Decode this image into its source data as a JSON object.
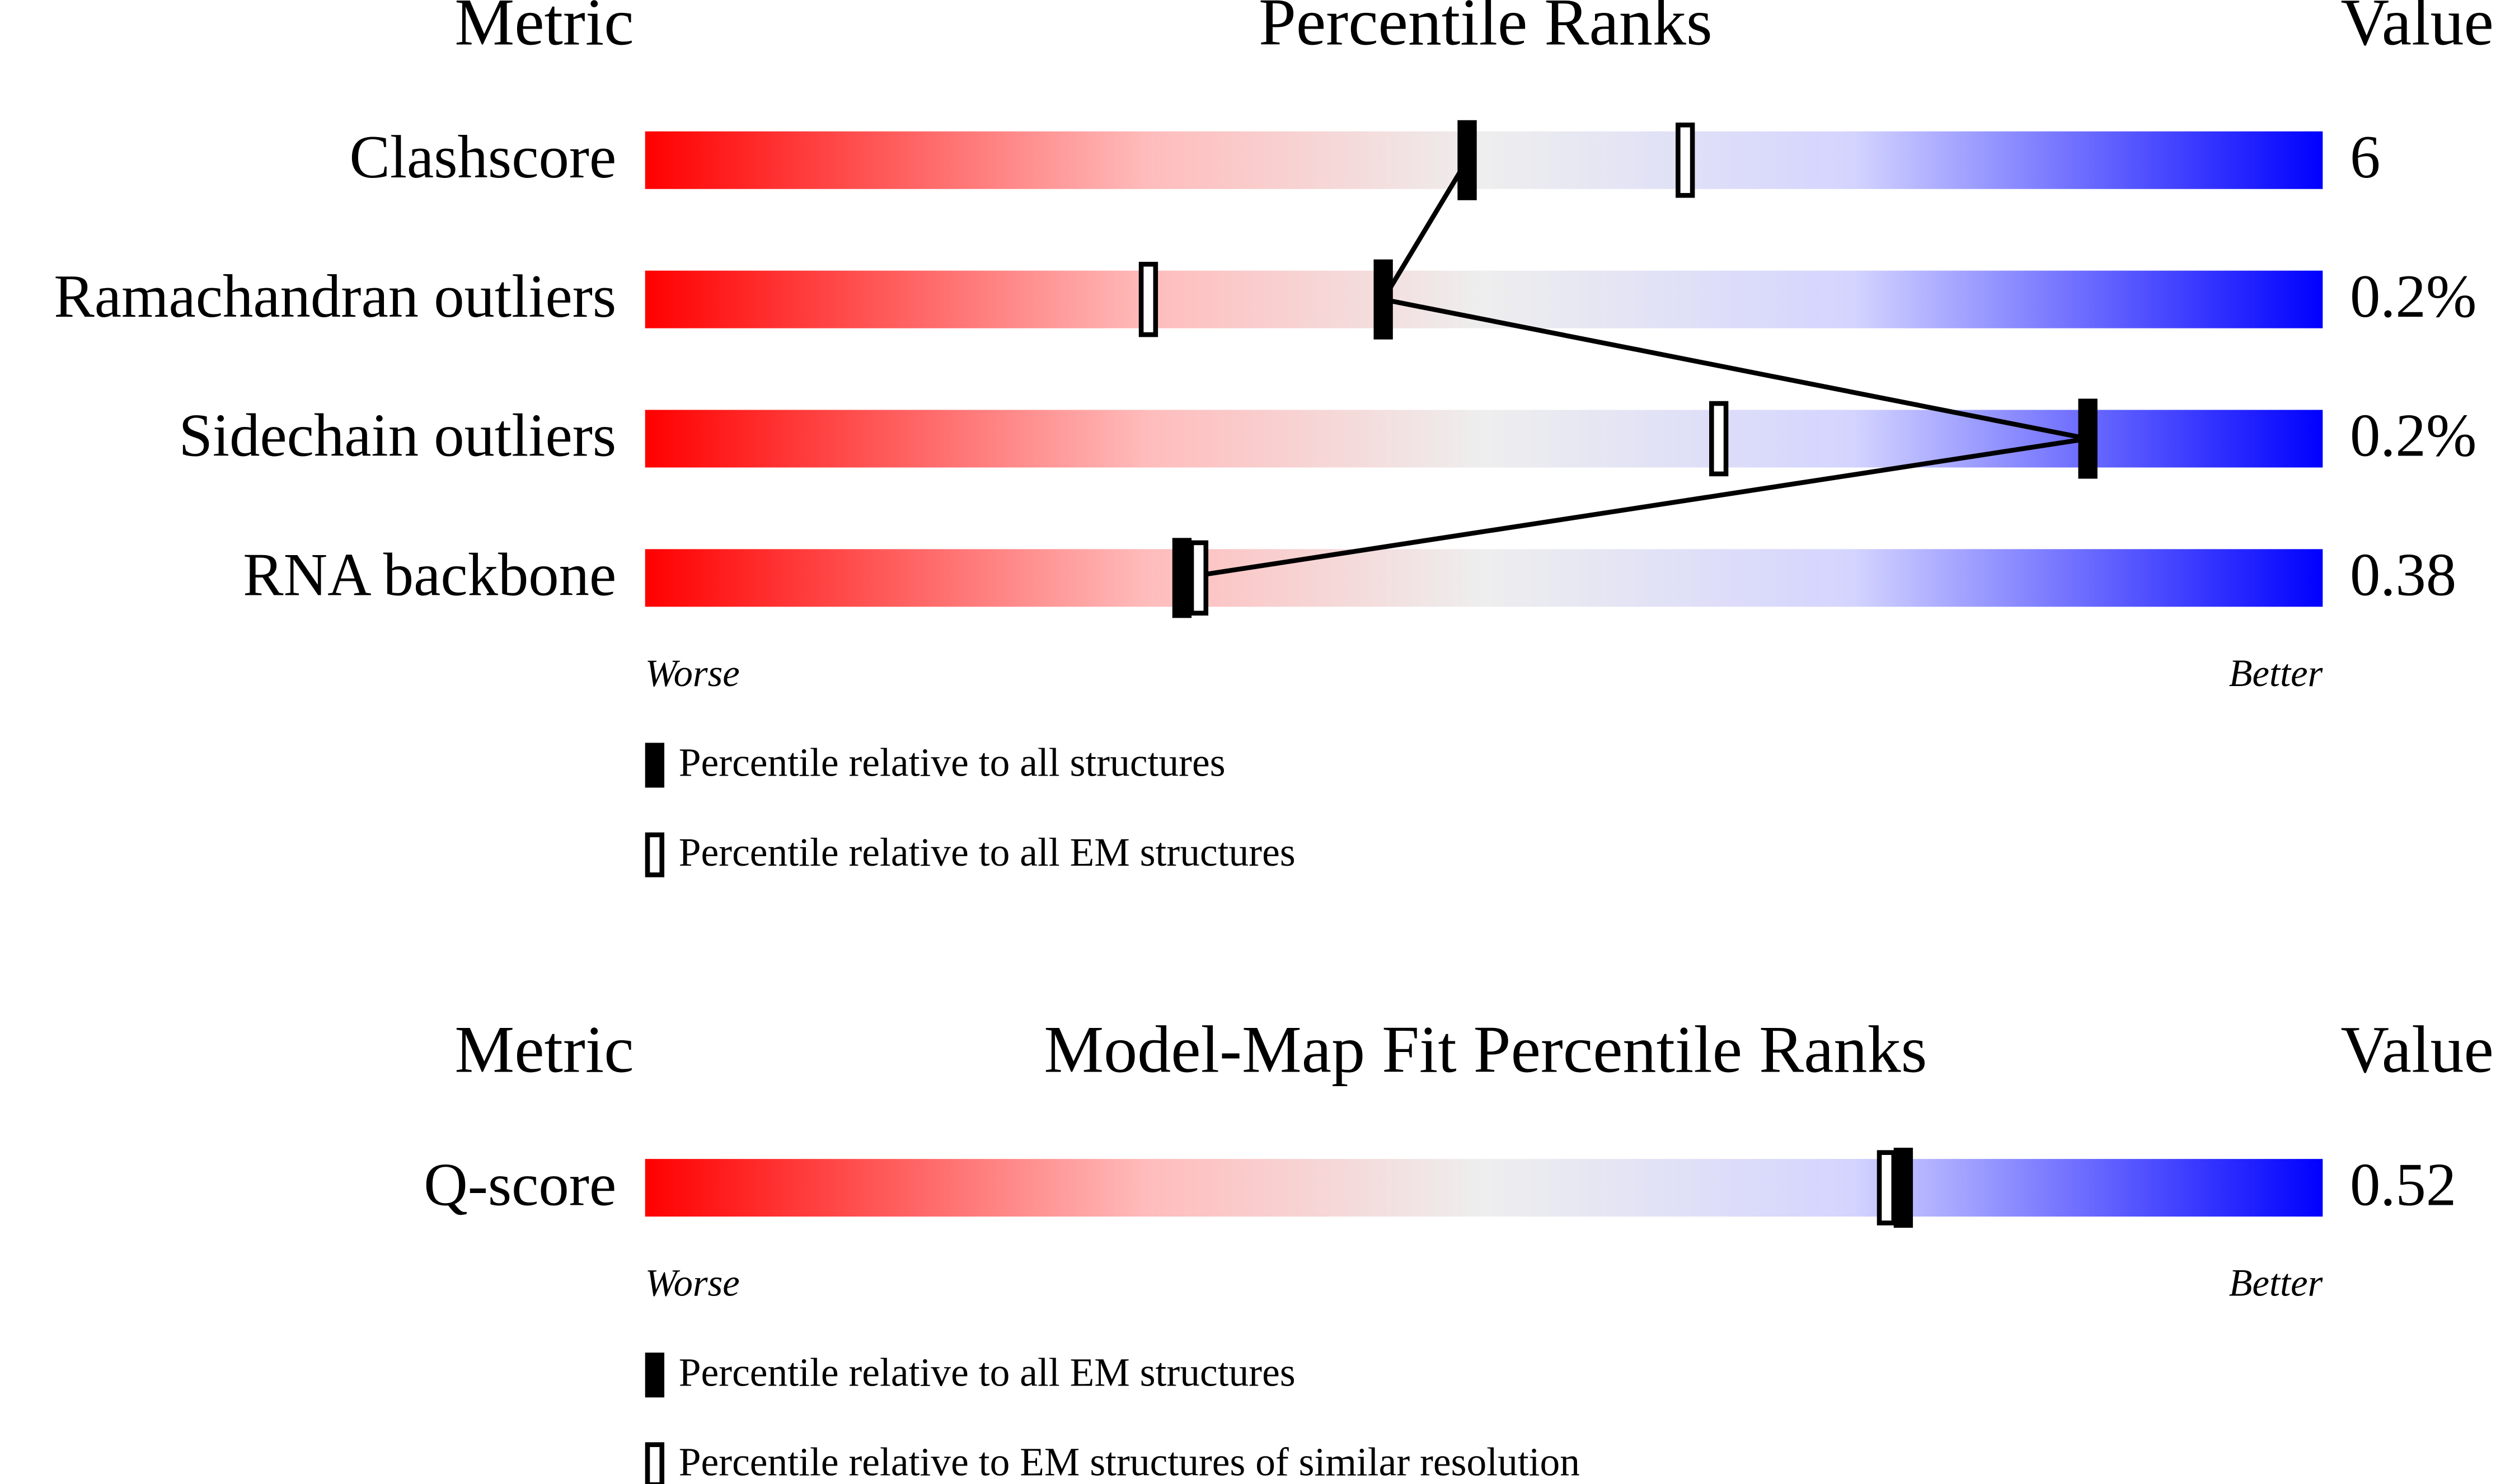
{
  "chart_data": [
    {
      "type": "percentile",
      "metric_header": "Metric",
      "title": "Percentile Ranks",
      "value_header": "Value",
      "categories": [
        "Clashscore",
        "Ramachandran outliers",
        "Sidechain outliers",
        "RNA backbone"
      ],
      "metric_values": [
        "6",
        "0.2%",
        "0.2%",
        "0.38"
      ],
      "series": [
        {
          "name": "Percentile relative to all structures",
          "color": "#000000",
          "marker": "filled",
          "values": [
            49,
            44,
            86,
            32
          ]
        },
        {
          "name": "Percentile relative to all EM structures",
          "color": "#000000",
          "marker": "hollow",
          "values": [
            62,
            30,
            64,
            33
          ]
        }
      ],
      "xlim": [
        0,
        100
      ],
      "worse_label": "Worse",
      "better_label": "Better"
    },
    {
      "type": "percentile",
      "metric_header": "Metric",
      "title": "Model-Map Fit Percentile Ranks",
      "value_header": "Value",
      "categories": [
        "Q-score"
      ],
      "metric_values": [
        "0.52"
      ],
      "series": [
        {
          "name": "Percentile relative to all EM structures",
          "color": "#000000",
          "marker": "filled",
          "values": [
            75
          ]
        },
        {
          "name": "Percentile relative to EM structures of similar resolution",
          "color": "#000000",
          "marker": "hollow",
          "values": [
            74
          ]
        }
      ],
      "xlim": [
        0,
        100
      ],
      "worse_label": "Worse",
      "better_label": "Better"
    }
  ]
}
